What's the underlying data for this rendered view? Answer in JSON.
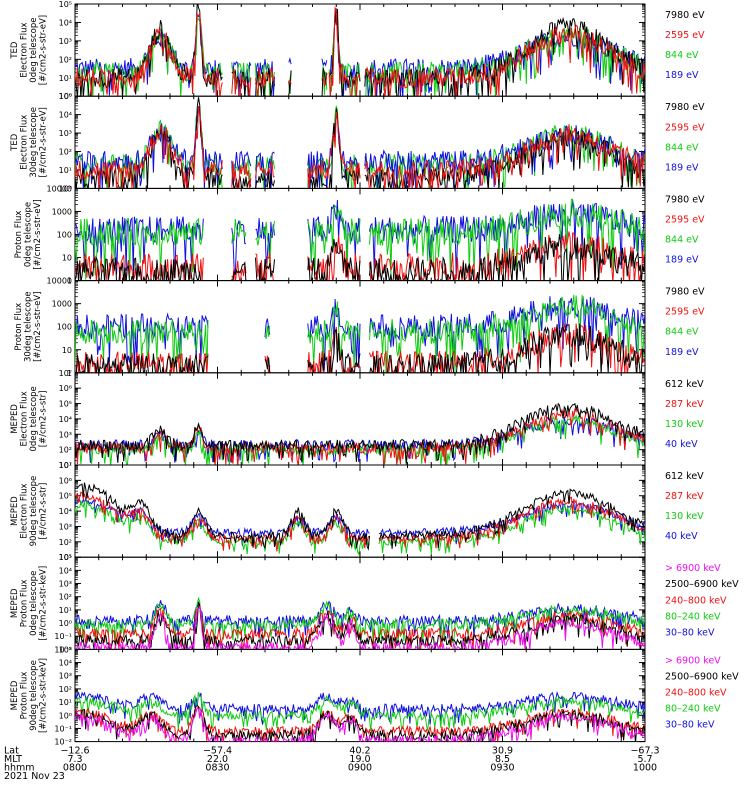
{
  "chart_data": {
    "type": "line",
    "date": "2021 Nov 23",
    "x_ticks": [
      {
        "hhmm": "0800",
        "lat": "−12.6",
        "mlt": "7.3"
      },
      {
        "hhmm": "0830",
        "lat": "−57.4",
        "mlt": "22.0"
      },
      {
        "hhmm": "0900",
        "lat": "40.2",
        "mlt": "19.0"
      },
      {
        "hhmm": "0930",
        "lat": "30.9",
        "mlt": "8.5"
      },
      {
        "hhmm": "1000",
        "lat": "−67.3",
        "mlt": "5.7"
      }
    ],
    "x_row_labels": [
      "Lat",
      "MLT",
      "hhmm"
    ],
    "xlim_minutes": [
      0,
      120
    ],
    "panels": [
      {
        "id": "ted-e-0",
        "ylabel": [
          "TED",
          "Electron Flux",
          "0deg telescope",
          "[#/cm2-s-str-eV]"
        ],
        "ylim_log": [
          0,
          5
        ],
        "yticks": [
          "10⁰",
          "10¹",
          "10²",
          "10³",
          "10⁴",
          "10⁵"
        ],
        "series": [
          {
            "name": "7980 eV",
            "color": "#000000"
          },
          {
            "name": "2595 eV",
            "color": "#ee1111"
          },
          {
            "name": "844 eV",
            "color": "#11cc11"
          },
          {
            "name": "189 eV",
            "color": "#1111dd"
          }
        ],
        "order": [
          3,
          2,
          0,
          1
        ],
        "base": [
          1.0,
          1.0,
          1.3,
          1.5
        ],
        "bumps": [
          [
            18,
            2.6,
            3
          ],
          [
            26,
            4.2,
            0.8
          ],
          [
            55,
            4.6,
            0.6
          ],
          [
            104,
            2.7,
            12
          ]
        ],
        "noise": 0.55,
        "segs": [
          [
            0,
            31
          ],
          [
            33,
            37
          ],
          [
            38,
            42
          ],
          [
            45,
            45.5
          ],
          [
            52,
            53
          ],
          [
            53.5,
            60
          ],
          [
            61,
            120
          ]
        ]
      },
      {
        "id": "ted-e-30",
        "ylabel": [
          "TED",
          "Electron Flux",
          "30deg telescope",
          "[#/cm2-s-str-eV]"
        ],
        "ylim_log": [
          0,
          5
        ],
        "yticks": [
          "10⁰",
          "10¹",
          "10²",
          "10³",
          "10⁴",
          "10⁵"
        ],
        "series": [
          {
            "name": "7980 eV",
            "color": "#000000"
          },
          {
            "name": "2595 eV",
            "color": "#ee1111"
          },
          {
            "name": "844 eV",
            "color": "#11cc11"
          },
          {
            "name": "189 eV",
            "color": "#1111dd"
          }
        ],
        "order": [
          2,
          3,
          0,
          1
        ],
        "base": [
          0.6,
          1.0,
          1.3,
          1.5
        ],
        "bumps": [
          [
            18,
            2.4,
            3
          ],
          [
            26,
            4.0,
            0.8
          ],
          [
            55,
            3.9,
            0.8
          ],
          [
            104,
            2.2,
            12
          ]
        ],
        "noise": 0.55,
        "segs": [
          [
            0,
            31
          ],
          [
            33,
            37
          ],
          [
            38,
            42
          ],
          [
            49,
            60
          ],
          [
            61,
            120
          ]
        ]
      },
      {
        "id": "ted-p-0",
        "ylabel": [
          "Proton Flux",
          "0deg telescope",
          "[#/cm2-s-str-eV]"
        ],
        "ylim_log": [
          0,
          4
        ],
        "yticks": [
          "1",
          "10",
          "100",
          "1000",
          "10000"
        ],
        "series": [
          {
            "name": "7980 eV",
            "color": "#000000"
          },
          {
            "name": "2595 eV",
            "color": "#ee1111"
          },
          {
            "name": "844 eV",
            "color": "#11cc11"
          },
          {
            "name": "189 eV",
            "color": "#1111dd"
          }
        ],
        "order": [
          3,
          2,
          1,
          0
        ],
        "base": [
          0.4,
          0.6,
          2.1,
          2.2
        ],
        "bumps": [
          [
            55,
            1.3,
            1.2
          ],
          [
            104,
            1.1,
            12
          ]
        ],
        "noise": 0.6,
        "segs": [
          [
            0,
            27
          ],
          [
            33,
            36
          ],
          [
            38,
            42
          ],
          [
            49,
            60
          ],
          [
            62,
            120
          ]
        ]
      },
      {
        "id": "ted-p-30",
        "ylabel": [
          "Proton Flux",
          "30deg telescope",
          "[#/cm2-s-str-eV]"
        ],
        "ylim_log": [
          0,
          4
        ],
        "yticks": [
          "1",
          "10",
          "100",
          "1000",
          "10000"
        ],
        "series": [
          {
            "name": "7980 eV",
            "color": "#000000"
          },
          {
            "name": "2595 eV",
            "color": "#ee1111"
          },
          {
            "name": "844 eV",
            "color": "#11cc11"
          },
          {
            "name": "189 eV",
            "color": "#1111dd"
          }
        ],
        "order": [
          3,
          2,
          1,
          0
        ],
        "base": [
          0.3,
          0.4,
          1.8,
          2.0
        ],
        "bumps": [
          [
            55,
            1.2,
            1.0
          ],
          [
            104,
            1.4,
            12
          ]
        ],
        "noise": 0.55,
        "segs": [
          [
            0,
            28
          ],
          [
            40,
            41
          ],
          [
            49,
            60
          ],
          [
            62,
            120
          ]
        ]
      },
      {
        "id": "meped-e-0",
        "ylabel": [
          "MEPED",
          "Electron Flux",
          "0deg telescope",
          "[#/cm2-s-str]"
        ],
        "ylim_log": [
          1,
          7
        ],
        "yticks": [
          "10¹",
          "10²",
          "10³",
          "10⁴",
          "10⁵",
          "10⁶",
          "10⁷"
        ],
        "series": [
          {
            "name": "612 keV",
            "color": "#000000"
          },
          {
            "name": "287 keV",
            "color": "#ee1111"
          },
          {
            "name": "130 keV",
            "color": "#11cc11"
          },
          {
            "name": "40 keV",
            "color": "#1111dd"
          }
        ],
        "order": [
          3,
          2,
          1,
          0
        ],
        "base": [
          2.3,
          2.1,
          2.0,
          2.3
        ],
        "bumps": [
          [
            104,
            2.5,
            14
          ],
          [
            18,
            1.0,
            2
          ],
          [
            26,
            1.5,
            1
          ]
        ],
        "noise": 0.35,
        "segs": [
          [
            0,
            120
          ]
        ]
      },
      {
        "id": "meped-e-90",
        "ylabel": [
          "MEPED",
          "Electron Flux",
          "90deg telescope",
          "[#/cm2-s-str]"
        ],
        "ylim_log": [
          1,
          7
        ],
        "yticks": [
          "10¹",
          "10²",
          "10³",
          "10⁴",
          "10⁵",
          "10⁶",
          "10⁷"
        ],
        "series": [
          {
            "name": "612 keV",
            "color": "#000000"
          },
          {
            "name": "287 keV",
            "color": "#ee1111"
          },
          {
            "name": "130 keV",
            "color": "#11cc11"
          },
          {
            "name": "40 keV",
            "color": "#1111dd"
          }
        ],
        "order": [
          3,
          2,
          1,
          0
        ],
        "base": [
          2.4,
          2.2,
          2.0,
          2.6
        ],
        "bumps": [
          [
            2,
            3.2,
            10
          ],
          [
            14,
            1.4,
            2.5
          ],
          [
            26,
            1.6,
            2
          ],
          [
            47,
            1.6,
            2
          ],
          [
            55,
            1.6,
            2
          ],
          [
            104,
            2.8,
            14
          ]
        ],
        "noise": 0.25,
        "segs": [
          [
            0,
            62
          ],
          [
            64,
            120
          ]
        ]
      },
      {
        "id": "meped-p-0",
        "ylabel": [
          "MEPED",
          "Proton Flux",
          "0deg telescope",
          "[#/cm2-s-str-keV]"
        ],
        "ylim_log": [
          -2,
          5
        ],
        "yticks": [
          "10⁻²",
          "10⁻¹",
          "10⁰",
          "10¹",
          "10²",
          "10³",
          "10⁴",
          "10⁵"
        ],
        "series": [
          {
            "name": "> 6900 keV",
            "color": "#ee11ee"
          },
          {
            "name": "2500–6900 keV",
            "color": "#000000"
          },
          {
            "name": "240–800 keV",
            "color": "#ee1111"
          },
          {
            "name": "80–240 keV",
            "color": "#11cc11"
          },
          {
            "name": "30–80 keV",
            "color": "#1111dd"
          }
        ],
        "order": [
          4,
          3,
          2,
          1,
          0
        ],
        "base": [
          -1.8,
          -1.3,
          -0.8,
          -0.1,
          0.2
        ],
        "bumps": [
          [
            18,
            2.4,
            1.5
          ],
          [
            26,
            3.0,
            0.8
          ],
          [
            53,
            2.2,
            2
          ],
          [
            58,
            1.8,
            1.2
          ],
          [
            104,
            1.8,
            12
          ]
        ],
        "noise": 0.4,
        "segs": [
          [
            0,
            120
          ]
        ]
      },
      {
        "id": "meped-p-90",
        "ylabel": [
          "MEPED",
          "Proton Flux",
          "90deg telescope",
          "[#/cm2-s-str-keV]"
        ],
        "ylim_log": [
          -2,
          5
        ],
        "yticks": [
          "10⁻²",
          "10⁻¹",
          "10⁰",
          "10¹",
          "10²",
          "10³",
          "10⁴",
          "10⁵"
        ],
        "series": [
          {
            "name": "> 6900 keV",
            "color": "#ee11ee"
          },
          {
            "name": "2500–6900 keV",
            "color": "#000000"
          },
          {
            "name": "240–800 keV",
            "color": "#ee1111"
          },
          {
            "name": "80–240 keV",
            "color": "#11cc11"
          },
          {
            "name": "30–80 keV",
            "color": "#1111dd"
          }
        ],
        "order": [
          4,
          3,
          2,
          1,
          0
        ],
        "base": [
          -1.9,
          -1.5,
          -1.2,
          0.0,
          0.5
        ],
        "bumps": [
          [
            2,
            1.8,
            8
          ],
          [
            16,
            1.6,
            3
          ],
          [
            26,
            2.4,
            1.5
          ],
          [
            53,
            1.8,
            2.5
          ],
          [
            58,
            1.5,
            2
          ],
          [
            104,
            1.8,
            13
          ]
        ],
        "noise": 0.35,
        "segs": [
          [
            0,
            120
          ]
        ]
      }
    ]
  }
}
